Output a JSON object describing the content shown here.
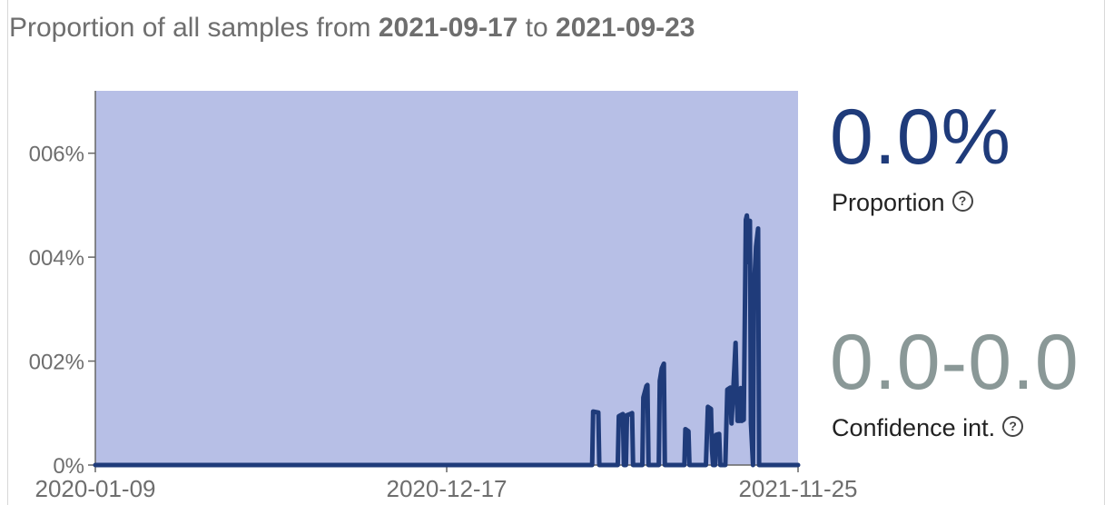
{
  "header": {
    "prefix": "Proportion of all samples from",
    "start_date": "2021-09-17",
    "connector": "to",
    "end_date": "2021-09-23"
  },
  "stats": {
    "proportion_value": "0.0%",
    "proportion_label": "Proportion",
    "ci_value": "0.0-0.0",
    "ci_label": "Confidence int.",
    "help_glyph": "?"
  },
  "colors": {
    "band": "#b7bfe6",
    "line": "#1f3b7a",
    "proportion_text": "#1f3b7a",
    "ci_text": "#8a9897"
  },
  "chart_data": {
    "type": "line",
    "x_axis": {
      "type": "date",
      "range": [
        "2020-01-09",
        "2021-11-25"
      ],
      "ticks": [
        "2020-01-09",
        "2020-12-17",
        "2021-11-25"
      ]
    },
    "y_axis": {
      "range": [
        0,
        0.0072
      ],
      "ticks": [
        {
          "value": 0,
          "label": "0%"
        },
        {
          "value": 0.002,
          "label": "002%"
        },
        {
          "value": 0.004,
          "label": "004%"
        },
        {
          "value": 0.006,
          "label": "006%"
        }
      ]
    },
    "confidence_band_upper": 0.0072,
    "series": [
      {
        "points": [
          [
            "2020-01-09",
            0
          ],
          [
            "2021-05-08",
            0
          ],
          [
            "2021-05-09",
            0.00103
          ],
          [
            "2021-05-14",
            0.00101
          ],
          [
            "2021-05-15",
            0
          ],
          [
            "2021-06-02",
            0
          ],
          [
            "2021-06-03",
            0.00094
          ],
          [
            "2021-06-07",
            0.00098
          ],
          [
            "2021-06-08",
            0
          ],
          [
            "2021-06-10",
            0
          ],
          [
            "2021-06-11",
            0.00096
          ],
          [
            "2021-06-14",
            0.00098
          ],
          [
            "2021-06-16",
            0.001
          ],
          [
            "2021-06-17",
            0
          ],
          [
            "2021-06-26",
            0
          ],
          [
            "2021-06-27",
            0.0013
          ],
          [
            "2021-06-30",
            0.00152
          ],
          [
            "2021-07-01",
            0.00154
          ],
          [
            "2021-07-02",
            0
          ],
          [
            "2021-07-12",
            0
          ],
          [
            "2021-07-13",
            0.00162
          ],
          [
            "2021-07-15",
            0.00186
          ],
          [
            "2021-07-17",
            0.00195
          ],
          [
            "2021-07-18",
            0
          ],
          [
            "2021-08-06",
            0
          ],
          [
            "2021-08-07",
            0.00069
          ],
          [
            "2021-08-10",
            0.00065
          ],
          [
            "2021-08-11",
            0
          ],
          [
            "2021-08-27",
            0
          ],
          [
            "2021-08-28",
            0.00057
          ],
          [
            "2021-08-29",
            0.00112
          ],
          [
            "2021-09-01",
            0.00108
          ],
          [
            "2021-09-02",
            0.0003
          ],
          [
            "2021-09-03",
            0
          ],
          [
            "2021-09-05",
            0
          ],
          [
            "2021-09-06",
            0.00058
          ],
          [
            "2021-09-09",
            0.0006
          ],
          [
            "2021-09-10",
            0
          ],
          [
            "2021-09-15",
            0
          ],
          [
            "2021-09-16",
            0.00073
          ],
          [
            "2021-09-17",
            0.00145
          ],
          [
            "2021-09-20",
            0.00149
          ],
          [
            "2021-09-21",
            0.0008
          ],
          [
            "2021-09-23",
            0.00153
          ],
          [
            "2021-09-25",
            0.00235
          ],
          [
            "2021-09-26",
            0.00148
          ],
          [
            "2021-09-27",
            0.00085
          ],
          [
            "2021-09-29",
            0.00085
          ],
          [
            "2021-09-30",
            0.00148
          ],
          [
            "2021-10-01",
            0.00085
          ],
          [
            "2021-10-03",
            0.00087
          ],
          [
            "2021-10-05",
            0.00472
          ],
          [
            "2021-10-06",
            0.0048
          ],
          [
            "2021-10-07",
            0.0046
          ],
          [
            "2021-10-08",
            0.0039
          ],
          [
            "2021-10-09",
            0.0047
          ],
          [
            "2021-10-10",
            0.0008
          ],
          [
            "2021-10-12",
            0
          ],
          [
            "2021-10-13",
            0.0034
          ],
          [
            "2021-10-15",
            0.0042
          ],
          [
            "2021-10-17",
            0.00455
          ],
          [
            "2021-10-18",
            0
          ]
        ]
      }
    ]
  }
}
